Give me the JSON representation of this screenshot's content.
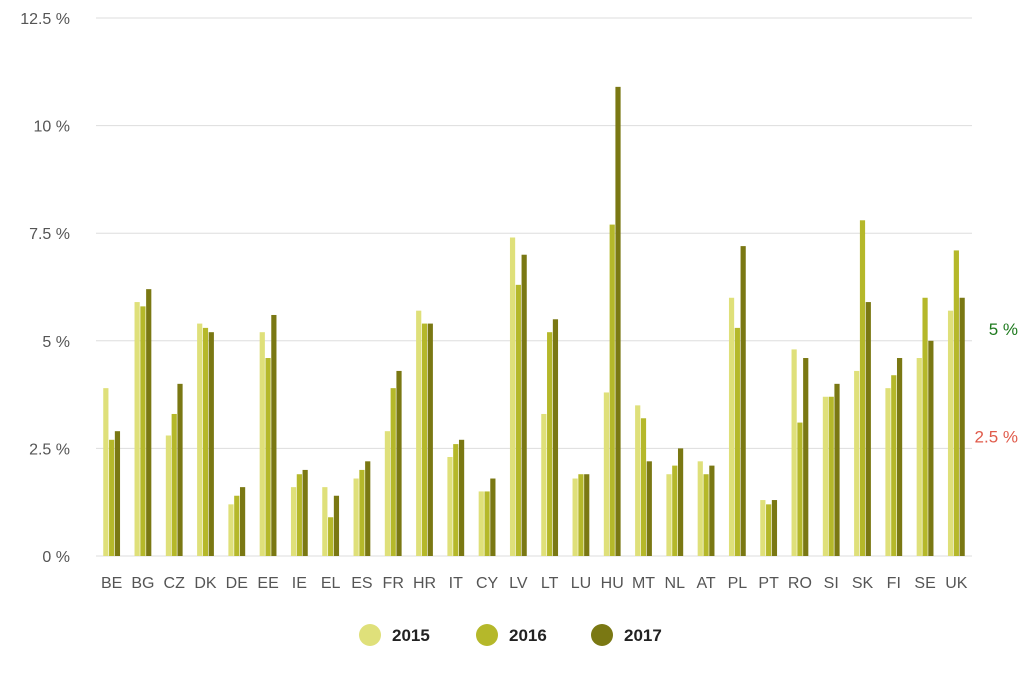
{
  "chart_data": {
    "type": "bar",
    "categories": [
      "BE",
      "BG",
      "CZ",
      "DK",
      "DE",
      "EE",
      "IE",
      "EL",
      "ES",
      "FR",
      "HR",
      "IT",
      "CY",
      "LV",
      "LT",
      "LU",
      "HU",
      "MT",
      "NL",
      "AT",
      "PL",
      "PT",
      "RO",
      "SI",
      "SK",
      "FI",
      "SE",
      "UK"
    ],
    "series": [
      {
        "name": "2015",
        "color": "#dfe07a",
        "values": [
          3.9,
          5.9,
          2.8,
          5.4,
          1.2,
          5.2,
          1.6,
          1.6,
          1.8,
          2.9,
          5.7,
          2.3,
          1.5,
          7.4,
          3.3,
          1.8,
          3.8,
          3.5,
          1.9,
          2.2,
          6.0,
          1.3,
          4.8,
          3.7,
          4.3,
          3.9,
          4.6,
          5.7
        ]
      },
      {
        "name": "2016",
        "color": "#b5b82a",
        "values": [
          2.7,
          5.8,
          3.3,
          5.3,
          1.4,
          4.6,
          1.9,
          0.9,
          2.0,
          3.9,
          5.4,
          2.6,
          1.5,
          6.3,
          5.2,
          1.9,
          7.7,
          3.2,
          2.1,
          1.9,
          5.3,
          1.2,
          3.1,
          3.7,
          7.8,
          4.2,
          6.0,
          7.1
        ]
      },
      {
        "name": "2017",
        "color": "#7a7813",
        "values": [
          2.9,
          6.2,
          4.0,
          5.2,
          1.6,
          5.6,
          2.0,
          1.4,
          2.2,
          4.3,
          5.4,
          2.7,
          1.8,
          7.0,
          5.5,
          1.9,
          10.9,
          2.2,
          2.5,
          2.1,
          7.2,
          1.3,
          4.6,
          4.0,
          5.9,
          4.6,
          5.0,
          6.0
        ]
      }
    ],
    "yticks": [
      "0 %",
      "2.5 %",
      "5 %",
      "7.5 %",
      "10 %",
      "12.5 %"
    ],
    "ytick_values": [
      0,
      2.5,
      5,
      7.5,
      10,
      12.5
    ],
    "ylim": [
      0,
      12.5
    ],
    "grid": true,
    "legend_position": "bottom-center",
    "reference_labels": [
      {
        "text": "5 %",
        "value": 5,
        "color": "#1e7a1e"
      },
      {
        "text": "2.5 %",
        "value": 2.5,
        "color": "#e05a4a"
      }
    ],
    "title": "",
    "xlabel": "",
    "ylabel": ""
  }
}
